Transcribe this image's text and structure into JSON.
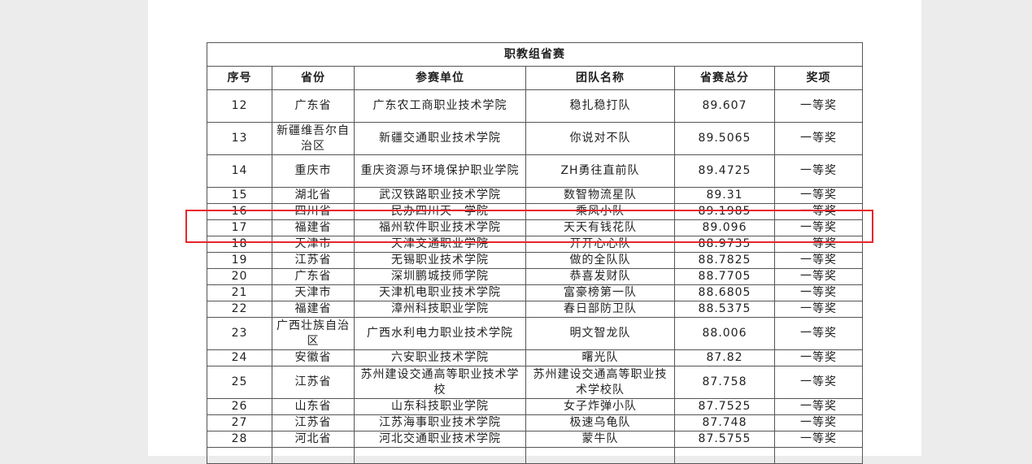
{
  "table": {
    "title": "职教组省赛",
    "headers": [
      "序号",
      "省份",
      "参赛单位",
      "团队名称",
      "省赛总分",
      "奖项"
    ],
    "rows": [
      {
        "no": "12",
        "province": "广东省",
        "unit": "广东农工商职业技术学院",
        "team": "稳扎稳打队",
        "score": "89.607",
        "award": "一等奖",
        "tall": true
      },
      {
        "no": "13",
        "province": "新疆维吾尔自治区",
        "unit": "新疆交通职业技术学院",
        "team": "你说对不队",
        "score": "89.5065",
        "award": "一等奖",
        "tall": true
      },
      {
        "no": "14",
        "province": "重庆市",
        "unit": "重庆资源与环境保护职业学院",
        "team": "ZH勇往直前队",
        "score": "89.4725",
        "award": "一等奖",
        "tall": true
      },
      {
        "no": "15",
        "province": "湖北省",
        "unit": "武汉铁路职业技术学院",
        "team": "数智物流星队",
        "score": "89.31",
        "award": "一等奖"
      },
      {
        "no": "16",
        "province": "四川省",
        "unit": "民办四川天一学院",
        "team": "乘风小队",
        "score": "89.1985",
        "award": "一等奖"
      },
      {
        "no": "17",
        "province": "福建省",
        "unit": "福州软件职业技术学院",
        "team": "天天有钱花队",
        "score": "89.096",
        "award": "一等奖"
      },
      {
        "no": "18",
        "province": "天津市",
        "unit": "天津交通职业学院",
        "team": "开开心心队",
        "score": "88.9735",
        "award": "一等奖"
      },
      {
        "no": "19",
        "province": "江苏省",
        "unit": "无锡职业技术学院",
        "team": "做的全队队",
        "score": "88.7825",
        "award": "一等奖"
      },
      {
        "no": "20",
        "province": "广东省",
        "unit": "深圳鹏城技师学院",
        "team": "恭喜发财队",
        "score": "88.7705",
        "award": "一等奖"
      },
      {
        "no": "21",
        "province": "天津市",
        "unit": "天津机电职业技术学院",
        "team": "富豪榜第一队",
        "score": "88.6805",
        "award": "一等奖"
      },
      {
        "no": "22",
        "province": "福建省",
        "unit": "漳州科技职业学院",
        "team": "春日部防卫队",
        "score": "88.5375",
        "award": "一等奖"
      },
      {
        "no": "23",
        "province": "广西壮族自治区",
        "unit": "广西水利电力职业技术学院",
        "team": "明文智龙队",
        "score": "88.006",
        "award": "一等奖",
        "tall": true
      },
      {
        "no": "24",
        "province": "安徽省",
        "unit": "六安职业技术学院",
        "team": "曙光队",
        "score": "87.82",
        "award": "一等奖"
      },
      {
        "no": "25",
        "province": "江苏省",
        "unit": "苏州建设交通高等职业技术学校",
        "team": "苏州建设交通高等职业技术学校队",
        "score": "87.758",
        "award": "一等奖",
        "tall": true
      },
      {
        "no": "26",
        "province": "山东省",
        "unit": "山东科技职业学院",
        "team": "女子炸弹小队",
        "score": "87.7525",
        "award": "一等奖"
      },
      {
        "no": "27",
        "province": "江苏省",
        "unit": "江苏海事职业技术学院",
        "team": "极速乌龟队",
        "score": "87.748",
        "award": "一等奖"
      },
      {
        "no": "28",
        "province": "河北省",
        "unit": "河北交通职业技术学院",
        "team": "蒙牛队",
        "score": "87.5755",
        "award": "一等奖"
      }
    ]
  },
  "highlight": {
    "row": "17",
    "color": "#e8262b"
  }
}
